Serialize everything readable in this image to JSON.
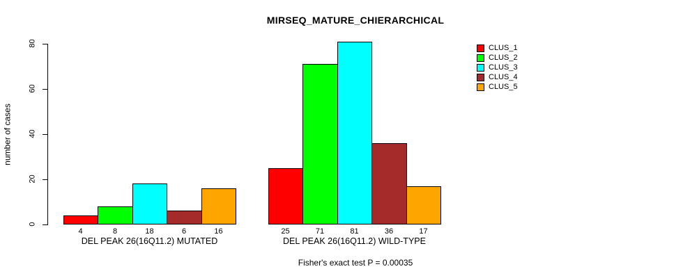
{
  "chart_data": {
    "type": "bar",
    "title": "MIRSEQ_MATURE_CHIERARCHICAL",
    "ylabel": "number of cases",
    "xlabel": "",
    "ylim": [
      0,
      80
    ],
    "yticks": [
      0,
      20,
      40,
      60,
      80
    ],
    "grid": false,
    "background": "#FFFFFF",
    "series": [
      {
        "name": "CLUS_1",
        "color": "#FF0000"
      },
      {
        "name": "CLUS_2",
        "color": "#00FF00"
      },
      {
        "name": "CLUS_3",
        "color": "#00FFFF"
      },
      {
        "name": "CLUS_4",
        "color": "#A52A2A"
      },
      {
        "name": "CLUS_5",
        "color": "#FFA500"
      }
    ],
    "groups": [
      {
        "label": "DEL PEAK 26(16Q11.2) MUTATED",
        "values": [
          4,
          8,
          18,
          6,
          16
        ]
      },
      {
        "label": "DEL PEAK 26(16Q11.2) WILD-TYPE",
        "values": [
          25,
          71,
          81,
          36,
          17
        ]
      }
    ],
    "bar_value_labels_shown": true,
    "footnote": "Fisher's exact test P = 0.00035",
    "legend": {
      "position": "right",
      "entries": [
        "CLUS_1",
        "CLUS_2",
        "CLUS_3",
        "CLUS_4",
        "CLUS_5"
      ]
    }
  }
}
